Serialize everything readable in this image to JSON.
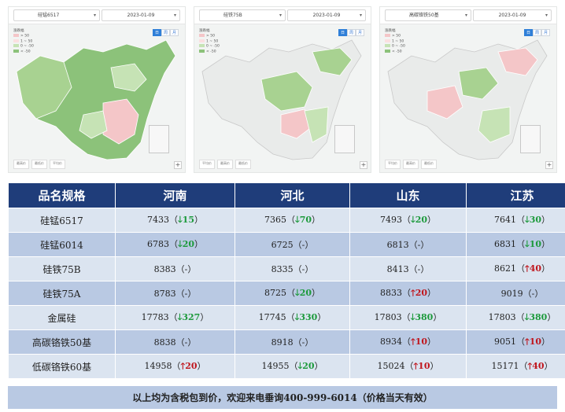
{
  "panels": [
    {
      "product": "硅锰6517",
      "date": "2023-01-09",
      "legend_title": "涨跌幅",
      "legend": [
        "> 50",
        "1 ~ 50",
        "0 ~ -50",
        "< -50"
      ],
      "modes": [
        "日",
        "周",
        "月"
      ],
      "stats": [
        "最高价",
        "最低价",
        "平均价"
      ]
    },
    {
      "product": "硅铁75B",
      "date": "2023-01-09",
      "legend_title": "涨跌幅",
      "legend": [
        "> 50",
        "1 ~ 50",
        "0 ~ -50",
        "< -50"
      ],
      "modes": [
        "日",
        "周",
        "月"
      ],
      "stats": [
        "平均价",
        "最高价",
        "最低价"
      ]
    },
    {
      "product": "高碳铬铁50基",
      "date": "2023-01-09",
      "legend_title": "涨跌幅",
      "legend": [
        "> 50",
        "1 ~ 50",
        "0 ~ -50",
        "< -50"
      ],
      "modes": [
        "日",
        "周",
        "月"
      ],
      "stats": [
        "平均价",
        "最高价",
        "最低价"
      ]
    }
  ],
  "table": {
    "headers": [
      "品名规格",
      "河南",
      "河北",
      "山东",
      "江苏"
    ],
    "rows": [
      {
        "name": "硅锰6517",
        "cells": [
          {
            "price": "7433",
            "dir": "down",
            "chg": "15"
          },
          {
            "price": "7365",
            "dir": "down",
            "chg": "70"
          },
          {
            "price": "7493",
            "dir": "down",
            "chg": "20"
          },
          {
            "price": "7641",
            "dir": "down",
            "chg": "30"
          }
        ]
      },
      {
        "name": "硅锰6014",
        "cells": [
          {
            "price": "6783",
            "dir": "down",
            "chg": "20"
          },
          {
            "price": "6725",
            "dir": "flat",
            "chg": "-"
          },
          {
            "price": "6813",
            "dir": "flat",
            "chg": "-"
          },
          {
            "price": "6831",
            "dir": "down",
            "chg": "10"
          }
        ]
      },
      {
        "name": "硅铁75B",
        "cells": [
          {
            "price": "8383",
            "dir": "flat",
            "chg": "-"
          },
          {
            "price": "8335",
            "dir": "flat",
            "chg": "-"
          },
          {
            "price": "8413",
            "dir": "flat",
            "chg": "-"
          },
          {
            "price": "8621",
            "dir": "up",
            "chg": "40"
          }
        ]
      },
      {
        "name": "硅铁75A",
        "cells": [
          {
            "price": "8783",
            "dir": "flat",
            "chg": "-"
          },
          {
            "price": "8725",
            "dir": "down",
            "chg": "20"
          },
          {
            "price": "8833",
            "dir": "up",
            "chg": "20"
          },
          {
            "price": "9019",
            "dir": "flat",
            "chg": "-"
          }
        ]
      },
      {
        "name": "金属硅",
        "cells": [
          {
            "price": "17783",
            "dir": "down",
            "chg": "327"
          },
          {
            "price": "17745",
            "dir": "down",
            "chg": "330"
          },
          {
            "price": "17803",
            "dir": "down",
            "chg": "380"
          },
          {
            "price": "17803",
            "dir": "down",
            "chg": "380"
          }
        ]
      },
      {
        "name": "高碳铬铁50基",
        "cells": [
          {
            "price": "8838",
            "dir": "flat",
            "chg": "-"
          },
          {
            "price": "8918",
            "dir": "flat",
            "chg": "-"
          },
          {
            "price": "8934",
            "dir": "up",
            "chg": "10"
          },
          {
            "price": "9051",
            "dir": "up",
            "chg": "10"
          }
        ]
      },
      {
        "name": "低碳铬铁60基",
        "cells": [
          {
            "price": "14958",
            "dir": "up",
            "chg": "20"
          },
          {
            "price": "14955",
            "dir": "down",
            "chg": "20"
          },
          {
            "price": "15024",
            "dir": "up",
            "chg": "10"
          },
          {
            "price": "15171",
            "dir": "up",
            "chg": "40"
          }
        ]
      }
    ],
    "arrow_up": "🡑",
    "arrow_down": "🡓",
    "footer": "以上均为含税包到价，欢迎来电垂询400-999-6014（价格当天有效）"
  },
  "colors": {
    "header_bg": "#1f3d7a",
    "row_light": "#dbe4f0",
    "row_dark": "#b9c9e3",
    "down": "#1d9a3c",
    "up": "#c0161d",
    "map_green_dark": "#8cc27a",
    "map_green_light": "#c6e3b5",
    "map_pink": "#f4c6c8",
    "map_gray": "#e9ebea"
  }
}
